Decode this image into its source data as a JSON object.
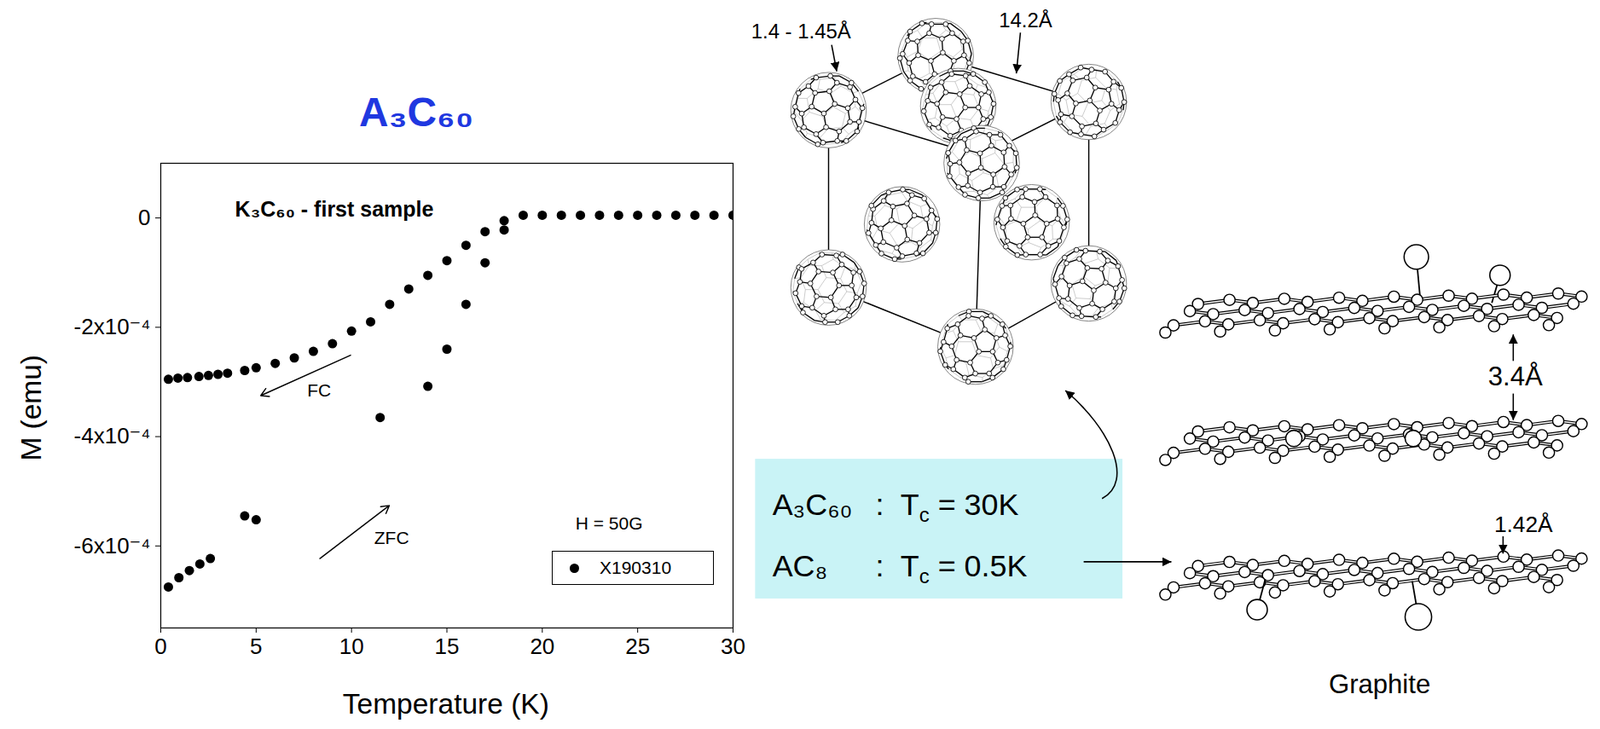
{
  "chart_data": {
    "type": "scatter",
    "title": "A₃C₆₀",
    "x_label": "Temperature (K)",
    "y_label": "M (emu)",
    "xlim": [
      0,
      30
    ],
    "xticks": [
      0,
      5,
      10,
      15,
      20,
      25,
      30
    ],
    "ylim": [
      -0.00075,
      0.0001
    ],
    "yticks": [
      0,
      {
        "value": -0.0002,
        "label": "-2x10⁻⁴"
      },
      {
        "value": -0.0004,
        "label": "-4x10⁻⁴"
      },
      {
        "value": -0.0006,
        "label": "-6x10⁻⁴"
      }
    ],
    "legend": "bottom-right",
    "series": [
      {
        "name": "X190310",
        "color": "#000000",
        "marker": "circle",
        "x": [
          0.4,
          0.9,
          1.4,
          2.0,
          2.5,
          3.0,
          3.5,
          4.4,
          5.0,
          6,
          7,
          8,
          9,
          10,
          11,
          12,
          13,
          14,
          15,
          16,
          17,
          18,
          19,
          20,
          21,
          22,
          23,
          24,
          25,
          26,
          27,
          28,
          29,
          30,
          0.4,
          0.95,
          1.5,
          2.05,
          2.6,
          4.4,
          5.0,
          11.5,
          14,
          15,
          16,
          17,
          18
        ],
        "values": [
          -0.000295,
          -0.000293,
          -0.000292,
          -0.00029,
          -0.000288,
          -0.000286,
          -0.000284,
          -0.000279,
          -0.000274,
          -0.000266,
          -0.000256,
          -0.000244,
          -0.00023,
          -0.000207,
          -0.00019,
          -0.000158,
          -0.00013,
          -0.000105,
          -7.8e-05,
          -5e-05,
          -2.5e-05,
          -5e-06,
          5e-06,
          5e-06,
          5e-06,
          5e-06,
          5e-06,
          5e-06,
          5e-06,
          5e-06,
          5e-06,
          5e-06,
          5e-06,
          5e-06,
          -0.000675,
          -0.000658,
          -0.000645,
          -0.000633,
          -0.000623,
          -0.000545,
          -0.000552,
          -0.000365,
          -0.000308,
          -0.00024,
          -0.000158,
          -8.2e-05,
          -2.2e-05
        ]
      }
    ],
    "annotations": [
      {
        "text": "K₃C₆₀ - first sample",
        "x": 9.1,
        "y": 1.5e-05
      },
      {
        "text": "FC",
        "x": 8.3,
        "y": -0.000316,
        "arrow": {
          "x1": 9.95,
          "y1": -0.000251,
          "x2": 5.24,
          "y2": -0.000325
        }
      },
      {
        "text": "ZFC",
        "x": 12.1,
        "y": -0.000586,
        "arrow": {
          "x1": 8.34,
          "y1": -0.000623,
          "x2": 11.98,
          "y2": -0.000526
        }
      },
      {
        "text": "H = 50G",
        "x": 23.5,
        "y": -0.00056
      }
    ]
  },
  "diagram": {
    "lattice": {
      "bond_label": "1.4 - 1.45Å",
      "lattice_label": "14.2Å"
    },
    "box": {
      "lines": [
        {
          "compound": "A₃C₆₀",
          "formula": [
            {
              "text": ":  T"
            },
            {
              "text": "c",
              "sub": true
            },
            {
              "text": " = 30K"
            }
          ]
        },
        {
          "compound": "AC₈",
          "formula": [
            {
              "text": ":  T"
            },
            {
              "text": "c",
              "sub": true
            },
            {
              "text": " = 0.5K"
            }
          ]
        }
      ]
    },
    "graphite": {
      "caption": "Graphite",
      "interlayer_label": "3.4Å",
      "bond_label": "1.42Å"
    }
  }
}
